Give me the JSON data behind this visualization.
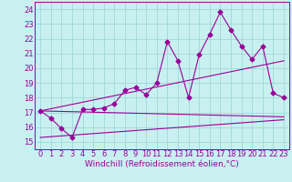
{
  "xlabel": "Windchill (Refroidissement éolien,°C)",
  "bg_color": "#c8f0f0",
  "grid_color": "#a0d8d8",
  "line_color": "#990099",
  "x_ticks": [
    0,
    1,
    2,
    3,
    4,
    5,
    6,
    7,
    8,
    9,
    10,
    11,
    12,
    13,
    14,
    15,
    16,
    17,
    18,
    19,
    20,
    21,
    22,
    23
  ],
  "y_ticks": [
    15,
    16,
    17,
    18,
    19,
    20,
    21,
    22,
    23,
    24
  ],
  "ylim": [
    14.5,
    24.5
  ],
  "xlim": [
    -0.5,
    23.5
  ],
  "series1": [
    17.1,
    16.6,
    15.9,
    15.3,
    17.2,
    17.2,
    17.3,
    17.6,
    18.5,
    18.7,
    18.2,
    19.0,
    21.8,
    20.5,
    18.0,
    20.9,
    22.3,
    23.8,
    22.6,
    21.5,
    20.6,
    21.5,
    18.3,
    18.0
  ],
  "series2_x": [
    0,
    23
  ],
  "series2_y": [
    17.1,
    16.7
  ],
  "series3_x": [
    0,
    23
  ],
  "series3_y": [
    17.1,
    20.5
  ],
  "series4_x": [
    0,
    23
  ],
  "series4_y": [
    15.3,
    16.5
  ],
  "tick_fontsize": 6,
  "xlabel_fontsize": 6.5
}
